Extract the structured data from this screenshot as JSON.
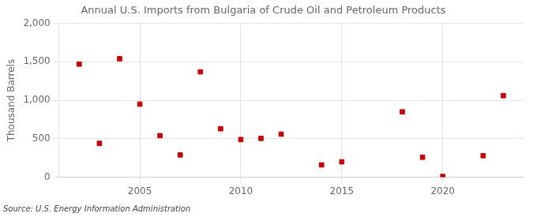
{
  "chart_data": {
    "type": "scatter",
    "title": "Annual U.S. Imports from Bulgaria of Crude Oil and Petroleum Products",
    "ylabel": "Thousand Barrels",
    "annotation": "Source: U.S. Energy Information Administration",
    "x": [
      2002,
      2003,
      2004,
      2005,
      2006,
      2007,
      2008,
      2009,
      2010,
      2011,
      2012,
      2014,
      2015,
      2018,
      2019,
      2020,
      2022,
      2023
    ],
    "values": [
      1470,
      440,
      1540,
      950,
      540,
      290,
      1370,
      630,
      490,
      505,
      560,
      160,
      200,
      850,
      260,
      10,
      280,
      1060
    ],
    "color": "#cc0000",
    "marker": "square",
    "xlim": [
      2001,
      2024
    ],
    "xticks": [
      2005,
      2010,
      2015,
      2020
    ],
    "ylim": [
      0,
      2000
    ],
    "yticks": [
      0,
      500,
      {
        "value": 1000,
        "label": "1,000"
      },
      {
        "value": 1500,
        "label": "1,500"
      },
      {
        "value": 2000,
        "label": "2,000"
      }
    ],
    "grid": true
  }
}
